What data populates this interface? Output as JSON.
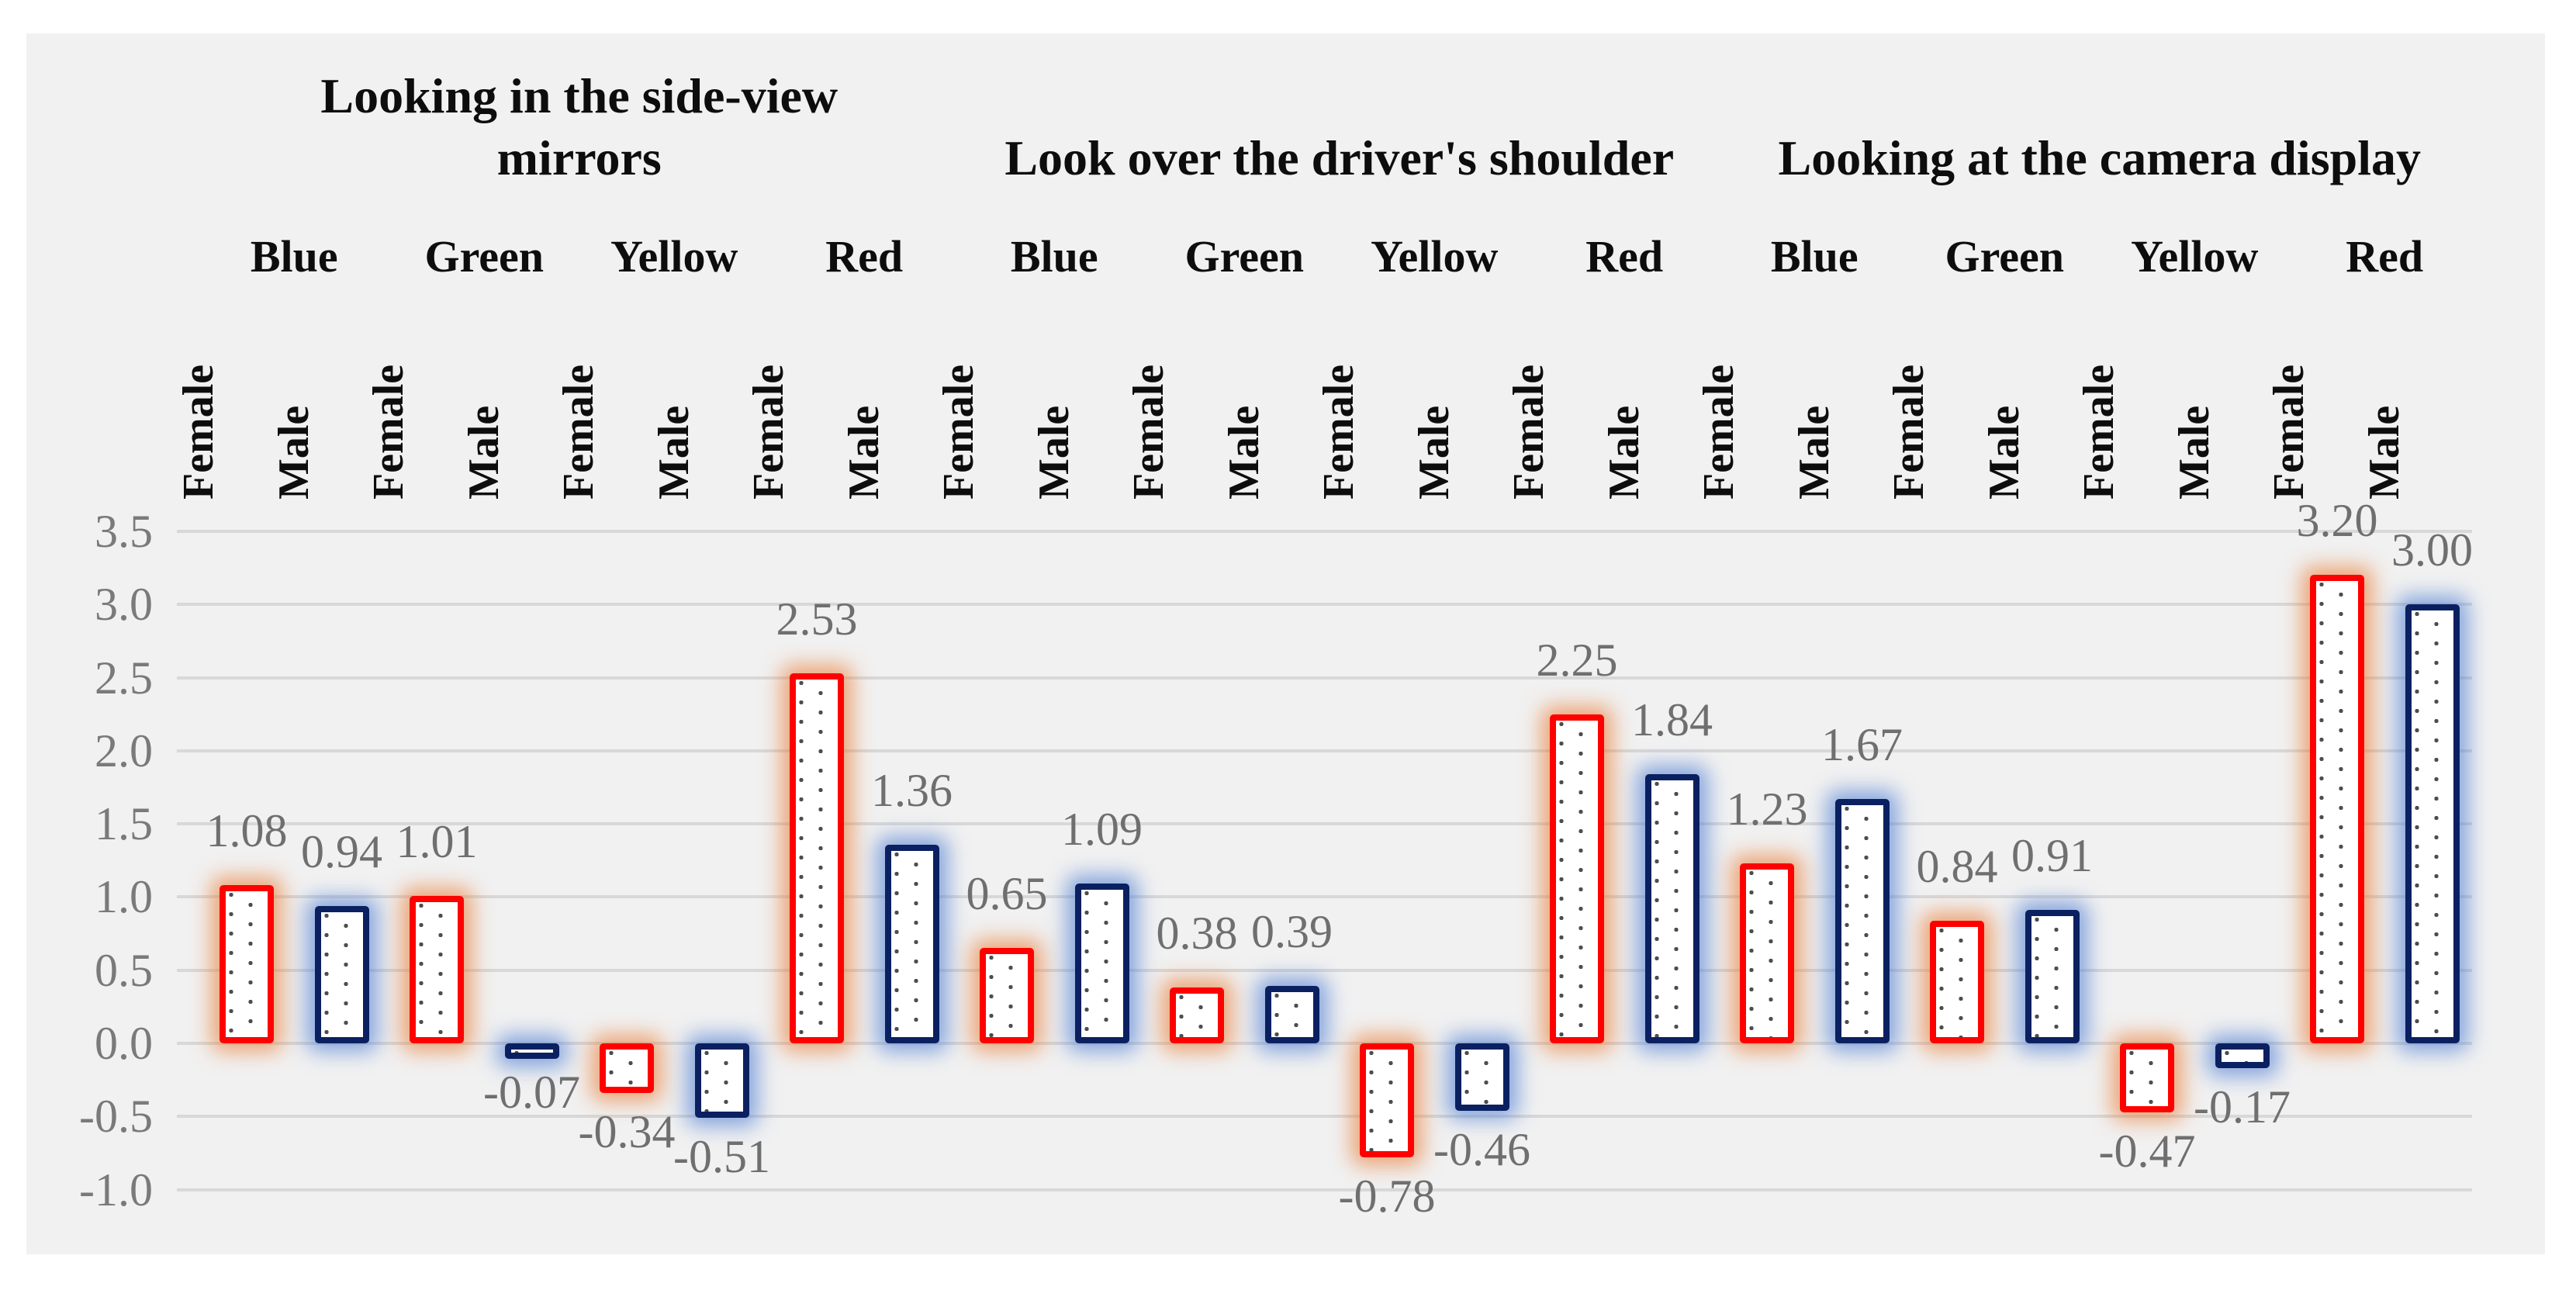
{
  "chart_data": {
    "type": "bar",
    "title": "",
    "y_axis": {
      "min": -1.0,
      "max": 3.5,
      "step": 0.5,
      "tick_labels": [
        "3.5",
        "3.0",
        "2.5",
        "2.0",
        "1.5",
        "1.0",
        "0.5",
        "0.0",
        "-0.5",
        "-1.0"
      ],
      "grid": true
    },
    "series_names": [
      "Female",
      "Male"
    ],
    "data_label_decimals": 2,
    "groups": [
      {
        "title": "Looking in the side-view mirrors",
        "title_lines": [
          "Looking in the side-view",
          "mirrors"
        ],
        "categories": [
          "Blue",
          "Green",
          "Yellow",
          "Red"
        ],
        "series": [
          {
            "name": "Female",
            "values": [
              1.08,
              1.01,
              -0.34,
              2.53
            ]
          },
          {
            "name": "Male",
            "values": [
              0.94,
              -0.07,
              -0.51,
              1.36
            ]
          }
        ]
      },
      {
        "title": "Look over the driver's shoulder",
        "title_lines": [
          "Look over the driver's shoulder"
        ],
        "categories": [
          "Blue",
          "Green",
          "Yellow",
          "Red"
        ],
        "series": [
          {
            "name": "Female",
            "values": [
              0.65,
              0.38,
              -0.78,
              2.25
            ]
          },
          {
            "name": "Male",
            "values": [
              1.09,
              0.39,
              -0.46,
              1.84
            ]
          }
        ]
      },
      {
        "title": "Looking at the camera display",
        "title_lines": [
          "Looking at the camera display"
        ],
        "categories": [
          "Blue",
          "Green",
          "Yellow",
          "Red"
        ],
        "series": [
          {
            "name": "Female",
            "values": [
              1.23,
              0.84,
              -0.47,
              3.2
            ]
          },
          {
            "name": "Male",
            "values": [
              1.67,
              0.91,
              -0.17,
              3.0
            ]
          }
        ]
      }
    ],
    "style": {
      "female_border": "#FF0000",
      "female_glow": "#E8782F",
      "male_border": "#0A2060",
      "male_glow": "#4678D2",
      "bar_fill": "#FFFFFF",
      "dot_color": "#4D4D4D",
      "gridline_color": "#D8D8D8",
      "panel_bg": "#F1F1F1",
      "page_bg": "#FFFFFF",
      "axis_text_color": "#7A7A7A",
      "label_text_color": "#6F6F6F",
      "header_text_color": "#0D0D0D"
    }
  }
}
